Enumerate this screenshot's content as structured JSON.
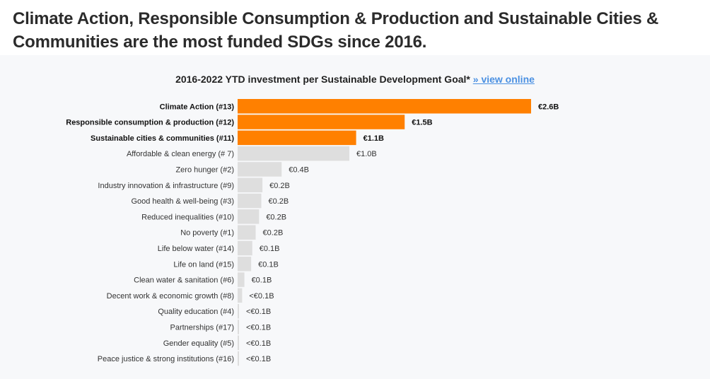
{
  "headline": "Climate Action, Responsible Consumption & Production and Sustainable Cities & Communities are the most funded SDGs since 2016.",
  "chart_data": {
    "type": "bar",
    "orientation": "horizontal",
    "title": "2016-2022 YTD investment per Sustainable Development Goal*",
    "title_link": "» view online",
    "xlabel": "",
    "ylabel": "",
    "unit": "€B",
    "colors": {
      "highlight": "#ff8000",
      "default": "#dedede"
    },
    "categories": [
      "Climate Action (#13)",
      "Responsible consumption & production (#12)",
      "Sustainable cities & communities (#11)",
      "Affordable & clean energy (# 7)",
      "Zero hunger (#2)",
      "Industry innovation & infrastructure (#9)",
      "Good health & well-being (#3)",
      "Reduced inequalities (#10)",
      "No poverty (#1)",
      "Life below water (#14)",
      "Life on land (#15)",
      "Clean water & sanitation (#6)",
      "Decent work & economic growth (#8)",
      "Quality education (#4)",
      "Partnerships (#17)",
      "Gender equality (#5)",
      "Peace justice & strong institutions (#16)"
    ],
    "values": [
      2.6,
      1.48,
      1.05,
      0.99,
      0.39,
      0.22,
      0.21,
      0.19,
      0.16,
      0.13,
      0.12,
      0.06,
      0.04,
      0.01,
      0.01,
      0.01,
      0.01
    ],
    "value_labels": [
      "€2.6B",
      "€1.5B",
      "€1.1B",
      "€1.0B",
      "€0.4B",
      "€0.2B",
      "€0.2B",
      "€0.2B",
      "€0.2B",
      "€0.1B",
      "€0.1B",
      "€0.1B",
      "<€0.1B",
      "<€0.1B",
      "<€0.1B",
      "<€0.1B",
      "<€0.1B"
    ],
    "highlighted": [
      true,
      true,
      true,
      false,
      false,
      false,
      false,
      false,
      false,
      false,
      false,
      false,
      false,
      false,
      false,
      false,
      false
    ],
    "xlim": [
      0,
      2.6
    ],
    "grid": false,
    "legend": "none"
  }
}
